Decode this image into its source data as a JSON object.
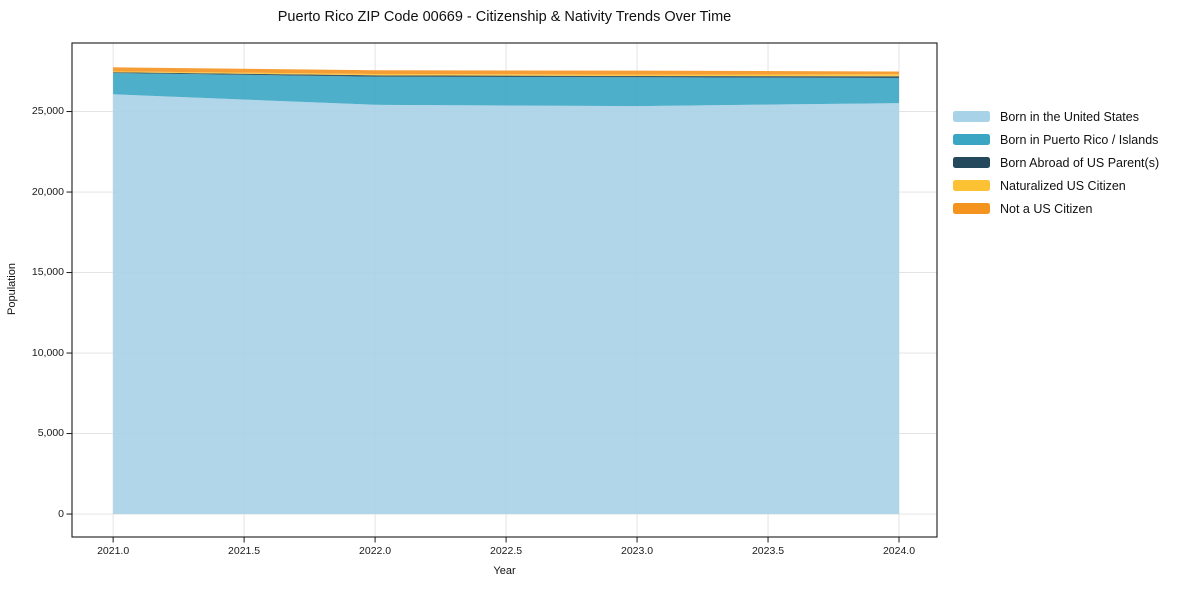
{
  "page": {
    "title": "Puerto Rico ZIP Code 00669 - Citizenship & Nativity Trends Over Time"
  },
  "chart_data": {
    "type": "area",
    "stacked": true,
    "title": "Puerto Rico ZIP Code 00669 - Citizenship & Nativity Trends Over Time",
    "xlabel": "Year",
    "ylabel": "Population",
    "x": [
      2021,
      2022,
      2023,
      2024
    ],
    "series": [
      {
        "name": "Born in the United States",
        "color": "#a8d2e7",
        "values": [
          26070,
          25420,
          25340,
          25525
        ]
      },
      {
        "name": "Born in Puerto Rico / Islands",
        "color": "#3aa6c4",
        "values": [
          1320,
          1745,
          1785,
          1555
        ]
      },
      {
        "name": "Born Abroad of US Parent(s)",
        "color": "#25495c",
        "values": [
          55,
          85,
          85,
          115
        ]
      },
      {
        "name": "Naturalized US Citizen",
        "color": "#fcc233",
        "values": [
          50,
          80,
          85,
          120
        ]
      },
      {
        "name": "Not a US Citizen",
        "color": "#f5931f",
        "values": [
          250,
          230,
          250,
          170
        ]
      }
    ],
    "xtick_values": [
      2021.0,
      2021.5,
      2022.0,
      2022.5,
      2023.0,
      2023.5,
      2024.0
    ],
    "xtick_labels": [
      "2021.0",
      "2021.5",
      "2022.0",
      "2022.5",
      "2023.0",
      "2023.5",
      "2024.0"
    ],
    "ytick_values": [
      0,
      5000,
      10000,
      15000,
      20000,
      25000
    ],
    "ytick_labels": [
      "0",
      "5,000",
      "10,000",
      "15,000",
      "20,000",
      "25,000"
    ],
    "xlim": [
      2020.843,
      2024.145
    ],
    "ylim": [
      -1426,
      29257
    ],
    "grid": true,
    "grid_color": "#e0e0e0",
    "axis_color": "#1a1a1a",
    "fill_alpha": 0.9,
    "legend_position": "right-outside",
    "legend_frame": false
  }
}
